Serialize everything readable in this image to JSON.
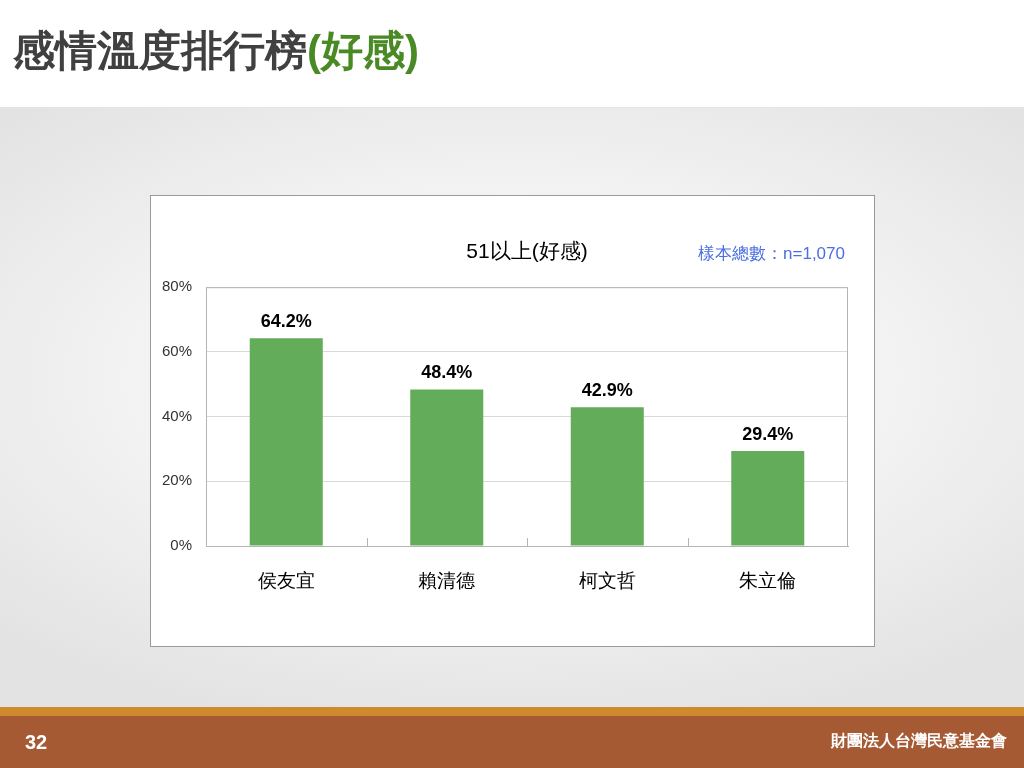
{
  "chart_data": {
    "type": "bar",
    "title": "感情溫度排行榜(好感)",
    "subtitle": "51以上(好感)",
    "annotations": [
      "樣本總數：n=1,070",
      "32",
      "財團法人台灣民意基金會"
    ],
    "categories": [
      "侯友宜",
      "賴清德",
      "柯文哲",
      "朱立倫"
    ],
    "values": [
      64.2,
      48.4,
      42.9,
      29.4
    ],
    "value_labels": [
      "64.2%",
      "48.4%",
      "42.9%",
      "29.4%"
    ],
    "color": "#63ad5a",
    "ylim": [
      0,
      80
    ],
    "yticks": [
      {
        "value": 0,
        "label": "0%"
      },
      {
        "value": 20,
        "label": "20%"
      },
      {
        "value": 40,
        "label": "40%"
      },
      {
        "value": 60,
        "label": "60%"
      },
      {
        "value": 80,
        "label": "80%"
      }
    ],
    "grid": "y"
  }
}
